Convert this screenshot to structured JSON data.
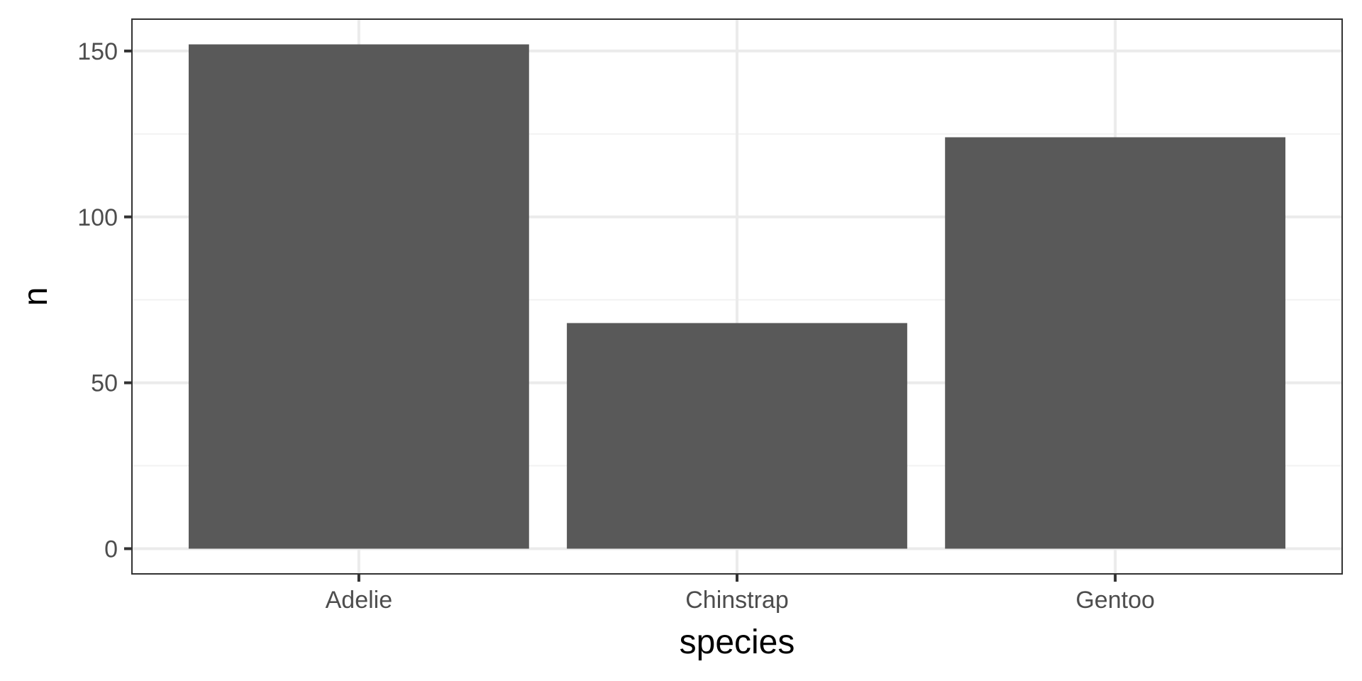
{
  "chart_data": {
    "type": "bar",
    "categories": [
      "Adelie",
      "Chinstrap",
      "Gentoo"
    ],
    "values": [
      152,
      68,
      124
    ],
    "xlabel": "species",
    "ylabel": "n",
    "ylim": [
      -7.6,
      159.6
    ],
    "yticks": [
      0,
      50,
      100,
      150
    ],
    "grid": true,
    "legend": "none",
    "colors": {
      "bar": "#595959",
      "panel_border": "#333333",
      "grid_major": "#ebebeb",
      "grid_minor": "#f2f2f2",
      "tick_label": "#4d4d4d",
      "axis_title": "#000000"
    }
  }
}
